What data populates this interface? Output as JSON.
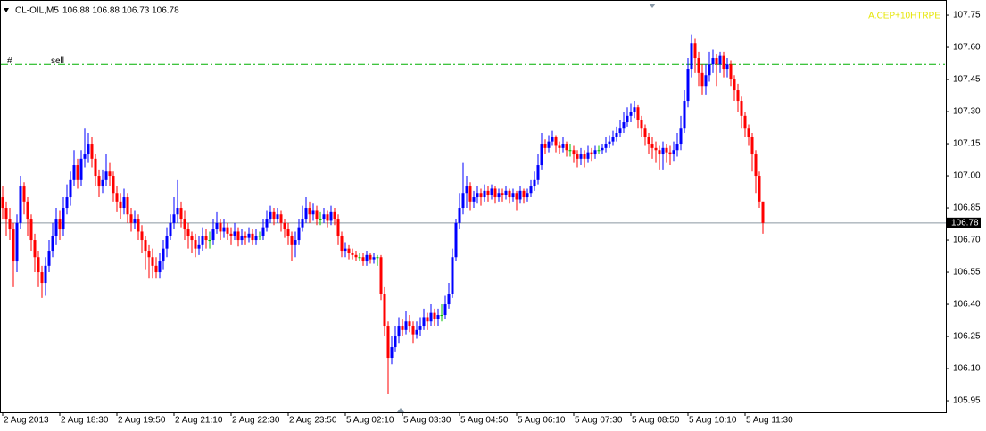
{
  "chart_data": {
    "type": "candlestick",
    "title": "CL-OIL,M5",
    "quote": "106.88 106.88 106.73 106.78",
    "indicator_text": "A.CEP+10HTRPE",
    "up_color": "#0000ff",
    "down_color": "#ff0000",
    "doji_color": "#00c000",
    "xlim": [
      -0.75,
      264.25
    ],
    "ylim": [
      105.896,
      107.821
    ],
    "yticks": [
      105.95,
      {
        "value": 106.1,
        "label": "106.10"
      },
      106.25,
      {
        "value": 106.4,
        "label": "106.40"
      },
      106.55,
      {
        "value": 106.7,
        "label": "106.70"
      },
      106.85,
      {
        "value": 107.0,
        "label": "107.00"
      },
      107.15,
      {
        "value": 107.3,
        "label": "107.30"
      },
      107.45,
      {
        "value": 107.6,
        "label": "107.60"
      },
      107.75
    ],
    "xticks": [
      {
        "value": 0,
        "label": "2 Aug 2013"
      },
      {
        "value": 16,
        "label": "2 Aug 18:30"
      },
      {
        "value": 32,
        "label": "2 Aug 19:50"
      },
      {
        "value": 48,
        "label": "2 Aug 21:10"
      },
      {
        "value": 64,
        "label": "2 Aug 22:30"
      },
      {
        "value": 80,
        "label": "2 Aug 23:50"
      },
      {
        "value": 96,
        "label": "5 Aug 02:10"
      },
      {
        "value": 112,
        "label": "5 Aug 03:30"
      },
      {
        "value": 128,
        "label": "5 Aug 04:50"
      },
      {
        "value": 144,
        "label": "5 Aug 06:10"
      },
      {
        "value": 160,
        "label": "5 Aug 07:30"
      },
      {
        "value": 176,
        "label": "5 Aug 08:50"
      },
      {
        "value": 192,
        "label": "5 Aug 10:10"
      },
      {
        "value": 208,
        "label": "5 Aug 11:30"
      }
    ],
    "current_price": {
      "value": 106.78,
      "label": "106.78"
    },
    "level": {
      "value": 107.52,
      "marker": "#",
      "label": "sell",
      "color": "#00b000"
    },
    "open": [
      106.9,
      106.85,
      106.8,
      106.75,
      106.6,
      106.78,
      106.95,
      106.88,
      106.8,
      106.7,
      106.62,
      106.55,
      106.5,
      106.58,
      106.65,
      106.72,
      106.8,
      106.75,
      106.85,
      106.9,
      106.98,
      107.05,
      106.98,
      107.08,
      107.1,
      107.15,
      107.08,
      107.0,
      106.95,
      106.98,
      107.02,
      107.0,
      106.92,
      106.88,
      106.85,
      106.9,
      106.82,
      106.78,
      106.8,
      106.74,
      106.7,
      106.65,
      106.62,
      106.58,
      106.55,
      106.6,
      106.66,
      106.72,
      106.78,
      106.82,
      106.85,
      106.8,
      106.75,
      106.72,
      106.7,
      106.66,
      106.68,
      106.72,
      106.7,
      106.7,
      106.75,
      106.78,
      106.74,
      106.76,
      106.73,
      106.72,
      106.74,
      106.7,
      106.72,
      106.71,
      106.73,
      106.7,
      106.72,
      106.72,
      106.76,
      106.8,
      106.83,
      106.8,
      106.82,
      106.78,
      106.75,
      106.72,
      106.68,
      106.7,
      106.76,
      106.8,
      106.85,
      106.82,
      106.84,
      106.8,
      106.8,
      106.82,
      106.79,
      106.83,
      106.8,
      106.72,
      106.65,
      106.66,
      106.64,
      106.63,
      106.62,
      106.62,
      106.6,
      106.63,
      106.61,
      106.62,
      106.62,
      106.45,
      106.3,
      106.15,
      106.2,
      106.25,
      106.3,
      106.28,
      106.32,
      106.3,
      106.26,
      106.28,
      106.3,
      106.34,
      106.32,
      106.36,
      106.33,
      106.35,
      106.35,
      106.4,
      106.45,
      106.62,
      106.78,
      106.85,
      106.92,
      106.95,
      106.88,
      106.9,
      106.92,
      106.9,
      106.93,
      106.91,
      106.94,
      106.9,
      106.92,
      106.91,
      106.93,
      106.9,
      106.92,
      106.89,
      106.93,
      106.9,
      106.92,
      106.95,
      106.98,
      107.05,
      107.15,
      107.13,
      107.16,
      107.18,
      107.14,
      107.13,
      107.15,
      107.12,
      107.12,
      107.1,
      107.08,
      107.1,
      107.08,
      107.11,
      107.1,
      107.12,
      107.12,
      107.13,
      107.15,
      107.16,
      107.18,
      107.2,
      107.22,
      107.25,
      107.28,
      107.3,
      107.32,
      107.26,
      107.22,
      107.18,
      107.15,
      107.13,
      107.12,
      107.1,
      107.13,
      107.11,
      107.1,
      107.12,
      107.15,
      107.22,
      107.35,
      107.5,
      107.62,
      107.55,
      107.48,
      107.42,
      107.47,
      107.52,
      107.55,
      107.52,
      107.56,
      107.5,
      107.52,
      107.45,
      107.4,
      107.35,
      107.28,
      107.22,
      107.18,
      107.1,
      107.0,
      106.88
    ],
    "high": [
      106.95,
      106.88,
      106.85,
      106.78,
      106.82,
      107.0,
      106.97,
      106.9,
      106.82,
      106.73,
      106.65,
      106.58,
      106.62,
      106.7,
      106.78,
      106.85,
      106.84,
      106.9,
      106.96,
      107.02,
      107.12,
      107.08,
      107.12,
      107.22,
      107.2,
      107.18,
      107.1,
      107.03,
      107.03,
      107.1,
      107.06,
      107.02,
      106.95,
      106.92,
      106.94,
      106.92,
      106.85,
      106.84,
      106.82,
      106.77,
      106.72,
      106.68,
      106.66,
      106.62,
      106.64,
      106.7,
      106.76,
      106.82,
      106.9,
      106.98,
      106.88,
      106.84,
      106.78,
      106.74,
      106.73,
      106.72,
      106.76,
      106.75,
      106.74,
      106.8,
      106.83,
      106.8,
      106.8,
      106.78,
      106.76,
      106.78,
      106.76,
      106.75,
      106.74,
      106.76,
      106.75,
      106.75,
      106.74,
      106.8,
      106.84,
      106.86,
      106.85,
      106.85,
      106.84,
      106.8,
      106.78,
      106.74,
      106.74,
      106.8,
      106.86,
      106.9,
      106.88,
      106.87,
      106.86,
      106.83,
      106.85,
      106.84,
      106.86,
      106.85,
      106.82,
      106.74,
      106.69,
      106.68,
      106.66,
      106.65,
      106.64,
      106.64,
      106.65,
      106.64,
      106.64,
      106.63,
      106.63,
      106.48,
      106.32,
      106.25,
      106.3,
      106.34,
      106.33,
      106.37,
      106.35,
      106.32,
      106.32,
      106.34,
      106.38,
      106.36,
      106.4,
      106.38,
      106.38,
      106.4,
      106.44,
      106.5,
      106.66,
      106.8,
      106.92,
      107.06,
      107.0,
      106.97,
      106.93,
      106.95,
      106.94,
      106.96,
      106.95,
      106.96,
      106.95,
      106.94,
      106.94,
      106.95,
      106.94,
      106.94,
      106.93,
      106.95,
      106.94,
      106.94,
      106.98,
      107.02,
      107.1,
      107.2,
      107.17,
      107.19,
      107.21,
      107.19,
      107.16,
      107.18,
      107.16,
      107.15,
      107.14,
      107.12,
      107.13,
      107.12,
      107.14,
      107.13,
      107.14,
      107.14,
      107.15,
      107.18,
      107.19,
      107.21,
      107.23,
      107.26,
      107.3,
      107.32,
      107.34,
      107.35,
      107.33,
      107.28,
      107.24,
      107.2,
      107.18,
      107.16,
      107.14,
      107.16,
      107.15,
      107.14,
      107.16,
      107.2,
      107.28,
      107.4,
      107.55,
      107.66,
      107.64,
      107.58,
      107.52,
      107.52,
      107.58,
      107.59,
      107.57,
      107.58,
      107.58,
      107.55,
      107.54,
      107.47,
      107.43,
      107.37,
      107.3,
      107.24,
      107.2,
      107.12,
      107.02,
      106.88
    ],
    "low": [
      106.8,
      106.72,
      106.7,
      106.48,
      106.55,
      106.75,
      106.82,
      106.72,
      106.65,
      106.55,
      106.48,
      106.43,
      106.44,
      106.55,
      106.62,
      106.68,
      106.7,
      106.72,
      106.82,
      106.86,
      106.95,
      106.94,
      106.95,
      107.04,
      107.06,
      107.04,
      106.95,
      106.9,
      106.92,
      106.95,
      106.95,
      106.88,
      106.83,
      106.8,
      106.82,
      106.78,
      106.74,
      106.75,
      106.7,
      106.64,
      106.56,
      106.52,
      106.52,
      106.52,
      106.52,
      106.56,
      106.62,
      106.7,
      106.75,
      106.78,
      106.76,
      106.7,
      106.66,
      106.64,
      106.62,
      106.63,
      106.65,
      106.66,
      106.66,
      106.68,
      106.73,
      106.7,
      106.71,
      106.7,
      106.68,
      106.7,
      106.67,
      106.68,
      106.68,
      106.69,
      106.68,
      106.68,
      106.7,
      106.7,
      106.74,
      106.78,
      106.77,
      106.78,
      106.74,
      106.71,
      106.68,
      106.6,
      106.62,
      106.68,
      106.74,
      106.78,
      106.78,
      106.79,
      106.77,
      106.77,
      106.78,
      106.76,
      106.77,
      106.77,
      106.68,
      106.62,
      106.62,
      106.61,
      106.61,
      106.6,
      106.6,
      106.58,
      106.58,
      106.59,
      106.59,
      106.58,
      106.42,
      106.25,
      105.98,
      106.12,
      106.18,
      106.22,
      106.25,
      106.26,
      106.27,
      106.22,
      106.24,
      106.25,
      106.28,
      106.28,
      106.3,
      106.3,
      106.3,
      106.32,
      106.33,
      106.38,
      106.43,
      106.6,
      106.75,
      106.82,
      106.85,
      106.84,
      106.85,
      106.87,
      106.86,
      106.88,
      106.88,
      106.89,
      106.87,
      106.88,
      106.88,
      106.89,
      106.87,
      106.88,
      106.84,
      106.87,
      106.87,
      106.88,
      106.9,
      106.93,
      106.96,
      107.03,
      107.1,
      107.11,
      107.14,
      107.11,
      107.1,
      107.11,
      107.09,
      107.09,
      107.06,
      107.04,
      107.05,
      107.04,
      107.06,
      107.07,
      107.08,
      107.1,
      107.1,
      107.11,
      107.13,
      107.14,
      107.16,
      107.18,
      107.2,
      107.23,
      107.25,
      107.27,
      107.22,
      107.18,
      107.14,
      107.1,
      107.08,
      107.06,
      107.03,
      107.03,
      107.06,
      107.05,
      107.07,
      107.09,
      107.12,
      107.2,
      107.32,
      107.46,
      107.48,
      107.42,
      107.38,
      107.38,
      107.44,
      107.48,
      107.42,
      107.48,
      107.46,
      107.46,
      107.42,
      107.35,
      107.3,
      107.22,
      107.18,
      107.14,
      107.02,
      106.92,
      106.85,
      106.73
    ],
    "close": [
      106.85,
      106.8,
      106.75,
      106.6,
      106.78,
      106.95,
      106.88,
      106.8,
      106.7,
      106.62,
      106.55,
      106.5,
      106.58,
      106.65,
      106.72,
      106.8,
      106.75,
      106.85,
      106.9,
      106.98,
      107.05,
      106.98,
      107.08,
      107.1,
      107.15,
      107.08,
      107.0,
      106.95,
      106.98,
      107.02,
      107.0,
      106.92,
      106.88,
      106.85,
      106.9,
      106.82,
      106.78,
      106.8,
      106.74,
      106.7,
      106.65,
      106.62,
      106.58,
      106.55,
      106.6,
      106.66,
      106.72,
      106.78,
      106.82,
      106.85,
      106.8,
      106.75,
      106.72,
      106.7,
      106.66,
      106.68,
      106.72,
      106.7,
      106.7,
      106.75,
      106.78,
      106.74,
      106.76,
      106.73,
      106.72,
      106.74,
      106.7,
      106.72,
      106.71,
      106.73,
      106.7,
      106.72,
      106.72,
      106.76,
      106.8,
      106.83,
      106.8,
      106.82,
      106.78,
      106.75,
      106.72,
      106.68,
      106.7,
      106.76,
      106.8,
      106.85,
      106.82,
      106.84,
      106.8,
      106.8,
      106.82,
      106.79,
      106.83,
      106.8,
      106.72,
      106.65,
      106.66,
      106.64,
      106.63,
      106.62,
      106.62,
      106.6,
      106.63,
      106.61,
      106.62,
      106.62,
      106.45,
      106.3,
      106.15,
      106.2,
      106.25,
      106.3,
      106.28,
      106.32,
      106.3,
      106.26,
      106.28,
      106.3,
      106.34,
      106.32,
      106.36,
      106.33,
      106.35,
      106.35,
      106.4,
      106.45,
      106.62,
      106.78,
      106.85,
      106.92,
      106.95,
      106.88,
      106.9,
      106.92,
      106.9,
      106.93,
      106.91,
      106.94,
      106.9,
      106.92,
      106.91,
      106.93,
      106.9,
      106.92,
      106.89,
      106.93,
      106.9,
      106.92,
      106.95,
      106.98,
      107.05,
      107.15,
      107.13,
      107.16,
      107.18,
      107.14,
      107.13,
      107.15,
      107.12,
      107.12,
      107.1,
      107.08,
      107.1,
      107.08,
      107.11,
      107.1,
      107.12,
      107.12,
      107.13,
      107.15,
      107.16,
      107.18,
      107.2,
      107.22,
      107.25,
      107.28,
      107.3,
      107.32,
      107.26,
      107.22,
      107.18,
      107.15,
      107.13,
      107.12,
      107.1,
      107.13,
      107.11,
      107.1,
      107.12,
      107.15,
      107.22,
      107.35,
      107.5,
      107.62,
      107.55,
      107.48,
      107.42,
      107.47,
      107.52,
      107.55,
      107.52,
      107.56,
      107.5,
      107.52,
      107.45,
      107.4,
      107.35,
      107.28,
      107.22,
      107.18,
      107.1,
      107.0,
      106.88,
      106.78
    ]
  }
}
